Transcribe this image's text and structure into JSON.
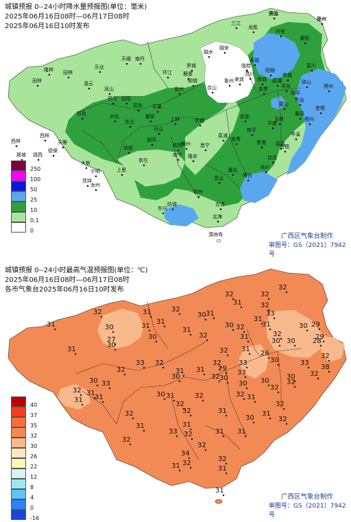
{
  "rain_map": {
    "title": "城镇预报 0--24小时降水量预报图(单位：毫米)",
    "period": "2025年06月16日08时—06月17日08时",
    "issued": "2025年06月16日10时发布",
    "legend_title": "",
    "legend": [
      {
        "label": "250",
        "color": "#7a0040"
      },
      {
        "label": "100",
        "color": "#ff00ff"
      },
      {
        "label": "50",
        "color": "#0a17d6"
      },
      {
        "label": "25",
        "color": "#5aa7f0"
      },
      {
        "label": "10",
        "color": "#2ea13d"
      },
      {
        "label": "0.1",
        "color": "#a8e59b"
      },
      {
        "label": "0",
        "color": "#ffffff"
      }
    ],
    "credit_line1": "广西区气象台制作",
    "credit_line2": "审图号：GS（2021）7942号",
    "island_label": "涠洲岛",
    "places": [
      "全州",
      "资源",
      "龙胜",
      "三江",
      "兴安",
      "灌阳",
      "融安",
      "融水",
      "永福",
      "阳朔",
      "恭城",
      "荔浦",
      "富川",
      "钟山",
      "昭平",
      "贺州",
      "平乐",
      "金秀",
      "蒙山",
      "苍梧",
      "藤县",
      "岑溪",
      "天峨",
      "南丹",
      "环江",
      "罗城",
      "宜州",
      "柳城",
      "来宾",
      "象州",
      "武宣",
      "桂平",
      "平南",
      "容县",
      "北流",
      "陆川",
      "博白",
      "浦北",
      "灵山",
      "钦州",
      "合浦",
      "北海",
      "防城",
      "东兴",
      "上思",
      "宁明",
      "凭祥",
      "龙州",
      "大新",
      "天等",
      "德保",
      "靖西",
      "那坡",
      "西林",
      "隆林",
      "田林",
      "乐业",
      "凌云",
      "凤山",
      "巴马",
      "田阳",
      "田东",
      "平果",
      "马山",
      "上林",
      "宾阳",
      "武鸣",
      "南宁",
      "横州",
      "邕宁",
      "隆安",
      "扶绥",
      "崇左",
      "百色",
      "田林",
      "西林",
      "都安",
      "大化",
      "东兰",
      "忻城",
      "合山",
      "鹿寨",
      "临桂",
      "灵川",
      "恭城",
      "荔浦",
      "金秀",
      "贵港",
      "玉林",
      "兴业",
      "梧州",
      "苍梧",
      "贺州",
      "钟山"
    ]
  },
  "temp_map": {
    "title": "城镇预报 0--24小时最高气温预报图(单位：℃)",
    "period": "2025年06月16日08时—06月17日08时",
    "issued": "各市气象台2025年06月16日10时发布",
    "legend": [
      {
        "label": "40",
        "color": "#c00000"
      },
      {
        "label": "37",
        "color": "#ff3b1f"
      },
      {
        "label": "35",
        "color": "#ff6d3c"
      },
      {
        "label": "32",
        "color": "#f28a55"
      },
      {
        "label": "30",
        "color": "#f8b98c"
      },
      {
        "label": "26",
        "color": "#fde8c0"
      },
      {
        "label": "22",
        "color": "#fdf9b0"
      },
      {
        "label": "12",
        "color": "#d7f4ef"
      },
      {
        "label": "8",
        "color": "#9fe7f0"
      },
      {
        "label": "4",
        "color": "#5ec4f3"
      },
      {
        "label": "0",
        "color": "#2d82f5"
      },
      {
        "label": "-16",
        "color": "#1b45d8"
      }
    ],
    "credit_line1": "广西区气象台制作",
    "credit_line2": "审图号：GS（2021）7942号",
    "values": [
      "31",
      "32",
      "30",
      "31",
      "27",
      "30",
      "31",
      "32",
      "30",
      "32",
      "31",
      "31",
      "30",
      "32",
      "32",
      "32",
      "33",
      "32",
      "31",
      "31",
      "32",
      "30",
      "30",
      "29",
      "28",
      "29",
      "31",
      "30",
      "31",
      "32",
      "32",
      "26",
      "30",
      "30",
      "33",
      "32",
      "31",
      "30",
      "31",
      "32",
      "29",
      "30",
      "33",
      "33",
      "31",
      "31",
      "32",
      "30",
      "32",
      "31",
      "30",
      "32",
      "30",
      "32",
      "38",
      "32",
      "33",
      "32",
      "31",
      "30",
      "32",
      "32",
      "32",
      "31",
      "31",
      "32",
      "33",
      "31",
      "30",
      "31",
      "32",
      "31",
      "32",
      "31",
      "32",
      "33",
      "32",
      "32",
      "31",
      "31",
      "30",
      "31",
      "32",
      "32",
      "34",
      "32",
      "31",
      "32",
      "31",
      "31",
      "31"
    ]
  }
}
